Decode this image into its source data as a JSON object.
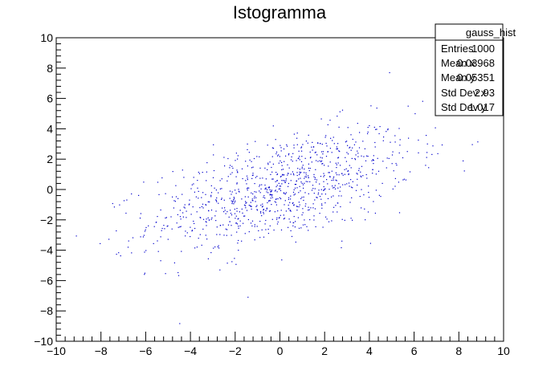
{
  "chart_data": {
    "type": "scatter",
    "title": "Istogramma",
    "xlabel": "",
    "ylabel": "",
    "xlim": [
      -10,
      10
    ],
    "ylim": [
      -10,
      10
    ],
    "x_ticks": [
      "−10",
      "−8",
      "−6",
      "−4",
      "−2",
      "0",
      "2",
      "4",
      "6",
      "8",
      "10"
    ],
    "y_ticks": [
      "−10",
      "−8",
      "−6",
      "−4",
      "−2",
      "0",
      "2",
      "4",
      "6",
      "8",
      "10"
    ],
    "grid": false,
    "point_color": "#0000cc",
    "stats_box": {
      "name": "gauss_hist",
      "rows": [
        {
          "label": "Entries",
          "value": "1000"
        },
        {
          "label": "Mean x",
          "value": "0.03968"
        },
        {
          "label": "Mean y",
          "value": "0.05351"
        },
        {
          "label": "Std Dev x",
          "value": "2.93"
        },
        {
          "label": "Std Dev y",
          "value": "1.017"
        }
      ]
    },
    "distribution": {
      "n": 1000,
      "mean_x": 0.03968,
      "mean_y": 0.05351,
      "std_x": 2.93,
      "std_y": 1.017
    }
  }
}
